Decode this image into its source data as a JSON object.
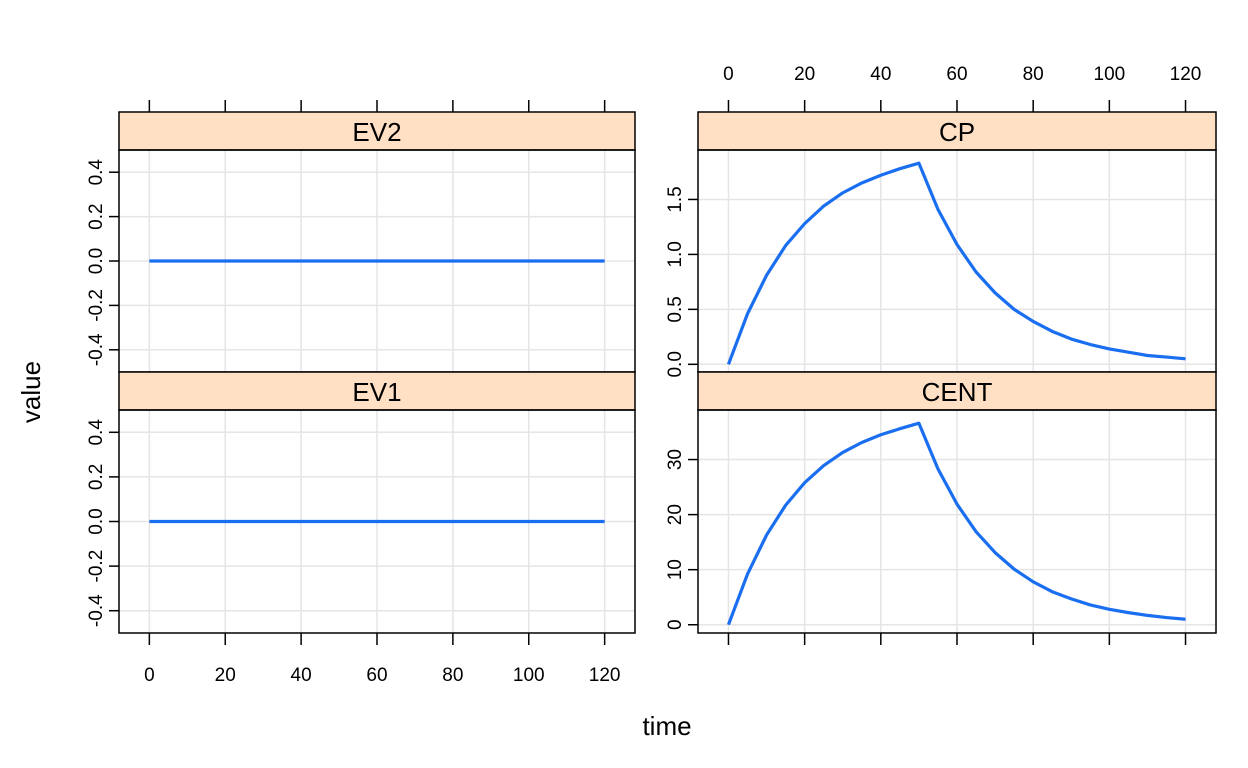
{
  "chart_data": {
    "type": "line",
    "xlabel": "time",
    "ylabel": "value",
    "x_ticks": [
      0,
      20,
      40,
      60,
      80,
      100,
      120
    ],
    "grid": true,
    "colors": {
      "line": "#1a6ef0",
      "strip": "#ffe0c4",
      "grid": "#e5e5e5",
      "frame": "#000000"
    },
    "panels": [
      {
        "name": "EV2",
        "xlim": [
          -8,
          128
        ],
        "ylim": [
          -0.5,
          0.5
        ],
        "y_ticks": [
          -0.4,
          -0.2,
          0.0,
          0.2,
          0.4
        ],
        "y_tick_labels": [
          "-0.4",
          "-0.2",
          "0.0",
          "0.2",
          "0.4"
        ],
        "series": [
          {
            "x": [
              0,
              120
            ],
            "y": [
              0,
              0
            ]
          }
        ]
      },
      {
        "name": "CP",
        "xlim": [
          -8,
          128
        ],
        "ylim": [
          -0.07,
          1.95
        ],
        "y_ticks": [
          0.0,
          0.5,
          1.0,
          1.5
        ],
        "y_tick_labels": [
          "0.0",
          "0.5",
          "1.0",
          "1.5"
        ],
        "series": [
          {
            "x": [
              0,
              5,
              10,
              15,
              20,
              25,
              30,
              35,
              40,
              45,
              50,
              55,
              60,
              65,
              70,
              75,
              80,
              85,
              90,
              95,
              100,
              105,
              110,
              115,
              120
            ],
            "y": [
              0.0,
              0.46,
              0.81,
              1.08,
              1.28,
              1.44,
              1.56,
              1.65,
              1.72,
              1.78,
              1.83,
              1.41,
              1.09,
              0.84,
              0.65,
              0.5,
              0.39,
              0.3,
              0.23,
              0.18,
              0.14,
              0.11,
              0.08,
              0.066,
              0.05
            ]
          }
        ]
      },
      {
        "name": "EV1",
        "xlim": [
          -8,
          128
        ],
        "ylim": [
          -0.5,
          0.5
        ],
        "y_ticks": [
          -0.4,
          -0.2,
          0.0,
          0.2,
          0.4
        ],
        "y_tick_labels": [
          "-0.4",
          "-0.2",
          "0.0",
          "0.2",
          "0.4"
        ],
        "series": [
          {
            "x": [
              0,
              120
            ],
            "y": [
              0,
              0
            ]
          }
        ]
      },
      {
        "name": "CENT",
        "xlim": [
          -8,
          128
        ],
        "ylim": [
          -1.5,
          39
        ],
        "y_ticks": [
          0,
          10,
          20,
          30
        ],
        "y_tick_labels": [
          "0",
          "10",
          "20",
          "30"
        ],
        "series": [
          {
            "x": [
              0,
              5,
              10,
              15,
              20,
              25,
              30,
              35,
              40,
              45,
              50,
              55,
              60,
              65,
              70,
              75,
              80,
              85,
              90,
              95,
              100,
              105,
              110,
              115,
              120
            ],
            "y": [
              0.0,
              9.2,
              16.3,
              21.7,
              25.8,
              28.9,
              31.3,
              33.1,
              34.5,
              35.6,
              36.6,
              28.3,
              21.9,
              16.9,
              13.1,
              10.1,
              7.8,
              6.0,
              4.7,
              3.6,
              2.8,
              2.2,
              1.7,
              1.3,
              1.0
            ]
          }
        ]
      }
    ]
  }
}
